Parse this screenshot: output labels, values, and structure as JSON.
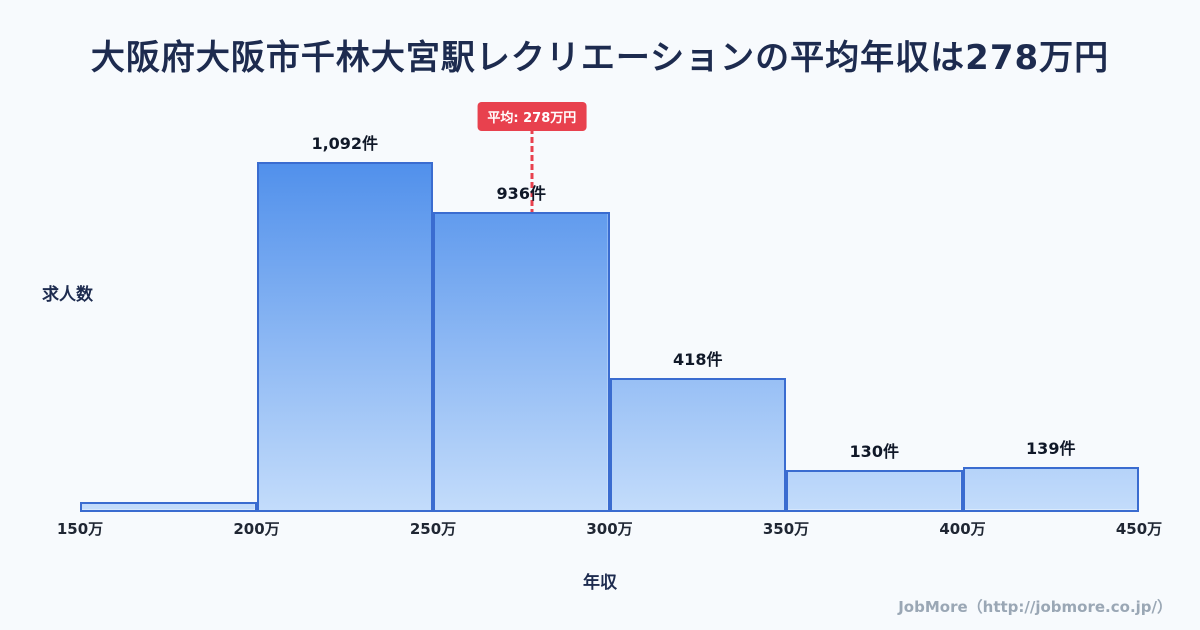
{
  "title": "大阪府大阪市千林大宮駅レクリエーションの平均年収は278万円",
  "footer": "JobMore（http://jobmore.co.jp/）",
  "colors": {
    "background": "#f7fafd",
    "title_text": "#1d2b4f",
    "bar_border": "#3a6cd0",
    "bar_gradient_top": "#4f8feb",
    "bar_gradient_bottom": "#c3dcfb",
    "average_accent": "#e8414e",
    "footer_text": "#9aa7b5"
  },
  "chart_data": {
    "type": "bar",
    "title": "大阪府大阪市千林大宮駅レクリエーションの平均年収は278万円",
    "xlabel": "年収",
    "ylabel": "求人数",
    "bins": [
      "150万",
      "200万",
      "250万",
      "300万",
      "350万",
      "400万",
      "450万"
    ],
    "x_range": [
      150,
      450
    ],
    "values": [
      30,
      1092,
      936,
      418,
      130,
      139
    ],
    "labels": [
      "",
      "1,092件",
      "936件",
      "418件",
      "130件",
      "139件"
    ],
    "ylim": [
      0,
      1100
    ],
    "grid": false,
    "legend": "none",
    "average": {
      "value": 278,
      "label": "平均: 278万円"
    }
  }
}
